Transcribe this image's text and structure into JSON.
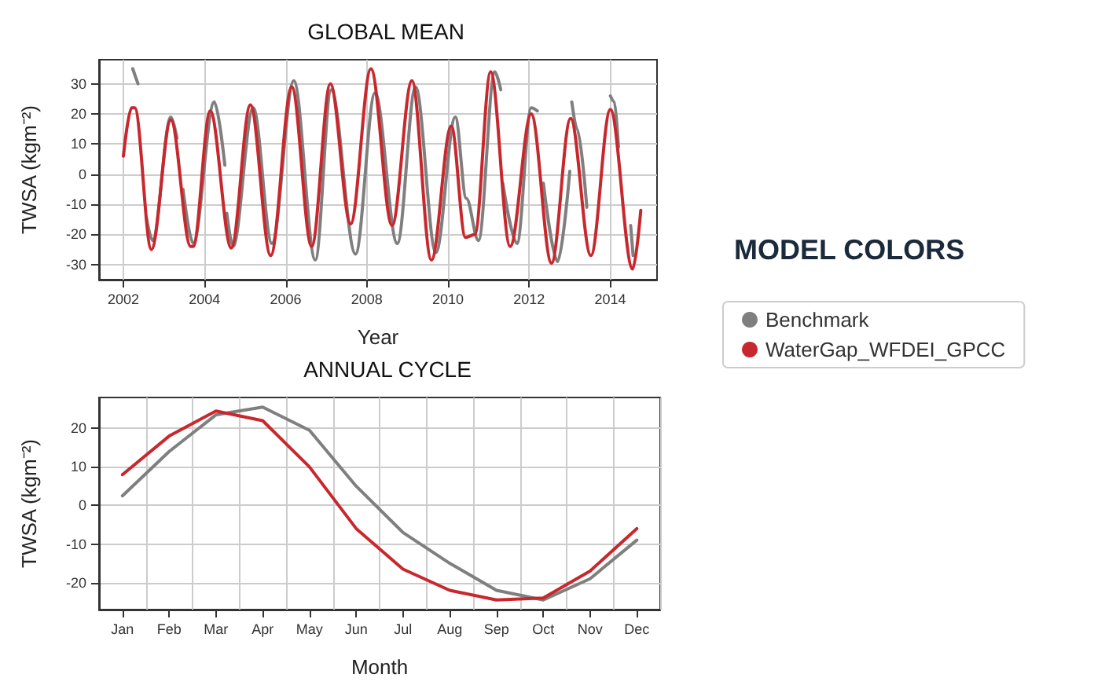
{
  "chart_data": [
    {
      "type": "line",
      "title": "GLOBAL MEAN",
      "xlabel": "Year",
      "ylabel": "TWSA (kgm⁻²)",
      "legend_title": "MODEL COLORS",
      "legend": "right",
      "grid": true,
      "marker": "none",
      "line_style": "solid",
      "xlim": [
        2001.4,
        2015.15
      ],
      "xticks": [
        2002,
        2004,
        2006,
        2008,
        2010,
        2012,
        2014
      ],
      "ylim": [
        -35,
        38
      ],
      "yticks": [
        -30,
        -20,
        -10,
        0,
        10,
        20,
        30
      ],
      "series": [
        {
          "name": "Benchmark",
          "color": "#7f7f7f",
          "x": [
            2002.23,
            2002.36,
            2002.46,
            2002.56,
            2002.72,
            2003.17,
            2003.32,
            2003.4,
            2003.47,
            2003.72,
            2004.24,
            2004.5,
            2004.52,
            2004.55,
            2004.7,
            2005.2,
            2005.66,
            2006.2,
            2006.73,
            2007.12,
            2007.72,
            2008.2,
            2008.75,
            2009.2,
            2009.7,
            2010.18,
            2010.45,
            2010.75,
            2011.15,
            2011.3,
            2011.32,
            2011.35,
            2011.7,
            2012.05,
            2012.2,
            2012.28,
            2012.35,
            2012.7,
            2013.0,
            2013.02,
            2013.05,
            2013.18,
            2013.42,
            2013.7,
            2014.0,
            2014.1,
            2014.2,
            2014.35,
            2014.5,
            2014.56
          ],
          "values": [
            35,
            30,
            null,
            -14,
            -22,
            19,
            12,
            null,
            -5,
            -23,
            24,
            3,
            null,
            -13,
            -24,
            22,
            -23,
            31,
            -28.5,
            28,
            -26.5,
            27,
            -23,
            29,
            -26,
            19,
            -8,
            -22,
            34,
            28,
            null,
            -3,
            -23,
            22,
            21,
            null,
            -3,
            -29,
            1,
            null,
            24,
            15,
            -11,
            null,
            26,
            24,
            9,
            null,
            -17,
            -27
          ]
        },
        {
          "name": "WaterGap_WFDEI_GPCC",
          "color": "#c8282d",
          "x": [
            2002.0,
            2002.2,
            2002.28,
            2002.69,
            2003.17,
            2003.66,
            2003.72,
            2004.14,
            2004.66,
            2005.13,
            2005.63,
            2006.15,
            2006.64,
            2007.1,
            2007.6,
            2008.1,
            2008.62,
            2009.11,
            2009.59,
            2010.08,
            2010.43,
            2010.66,
            2011.05,
            2011.53,
            2012.05,
            2012.55,
            2013.02,
            2013.52,
            2014.0,
            2014.55,
            2014.75
          ],
          "values": [
            6,
            22,
            22,
            -25,
            18,
            -24,
            -24,
            21,
            -24.5,
            23,
            -27,
            29,
            -24,
            30,
            -16.5,
            35,
            -17,
            31,
            -28.5,
            16,
            -21,
            -20,
            34,
            -24,
            20,
            -29.5,
            18.5,
            -27,
            21.5,
            -31.5,
            -12
          ]
        }
      ]
    },
    {
      "type": "line",
      "title": "ANNUAL CYCLE",
      "xlabel": "Month",
      "ylabel": "TWSA (kgm⁻²)",
      "grid": true,
      "marker": "none",
      "line_style": "solid",
      "categories": [
        "Jan",
        "Feb",
        "Mar",
        "Apr",
        "May",
        "Jun",
        "Jul",
        "Aug",
        "Sep",
        "Oct",
        "Nov",
        "Dec"
      ],
      "ylim": [
        -27,
        28
      ],
      "yticks": [
        -20,
        -10,
        0,
        10,
        20
      ],
      "series": [
        {
          "color": "#7f7f7f",
          "values": [
            2.5,
            14,
            23.5,
            25.5,
            19.5,
            5,
            -7,
            -15,
            -22,
            -24.5,
            -19,
            -9
          ]
        },
        {
          "color": "#c8282d",
          "values": [
            8,
            18,
            24.5,
            22,
            10,
            -6,
            -16.5,
            -22,
            -24.5,
            -24,
            -17,
            -6
          ]
        }
      ]
    }
  ]
}
